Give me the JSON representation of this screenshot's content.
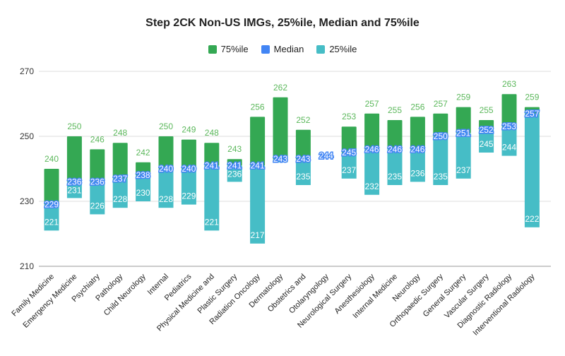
{
  "chart_data": {
    "type": "bar",
    "title": "Step 2CK Non-US IMGs, 25%ile, Median and 75%ile",
    "categories": [
      "Family Medicine",
      "Emergency Medicine",
      "Psychiatry",
      "Pathology",
      "Child Neurology",
      "Internal",
      "Pediatrics",
      "Physical Medicine and",
      "Plastic Surgery",
      "Radiation Oncology",
      "Dermatology",
      "Obstetrics and",
      "Otolaryngology",
      "Neurological Surgery",
      "Anesthesiology",
      "Internal Medicine",
      "Neurology",
      "Orthopaedic Surgery",
      "General Surgery",
      "Vascular Surgery",
      "Diagnostic Radiology",
      "Interventional Radiology"
    ],
    "series": [
      {
        "name": "75%ile",
        "color": "#34a853",
        "values": [
          240,
          250,
          246,
          248,
          242,
          250,
          249,
          248,
          243,
          256,
          262,
          252,
          null,
          253,
          257,
          255,
          256,
          257,
          259,
          255,
          263,
          259
        ]
      },
      {
        "name": "Median",
        "color": "#4285f4",
        "values": [
          229,
          236,
          236,
          237,
          238,
          240,
          240,
          241,
          241,
          241,
          243,
          243,
          244,
          245,
          246,
          246,
          246,
          250,
          251,
          252,
          253,
          257
        ]
      },
      {
        "name": "25%ile",
        "color": "#46bdc6",
        "values": [
          221,
          231,
          226,
          228,
          230,
          228,
          229,
          221,
          236,
          217,
          242,
          235,
          null,
          237,
          232,
          235,
          236,
          235,
          237,
          245,
          244,
          222
        ]
      }
    ],
    "yticks": [
      210,
      230,
      250,
      270
    ],
    "ylim": [
      210,
      270
    ],
    "grid": true,
    "legend": "top"
  }
}
